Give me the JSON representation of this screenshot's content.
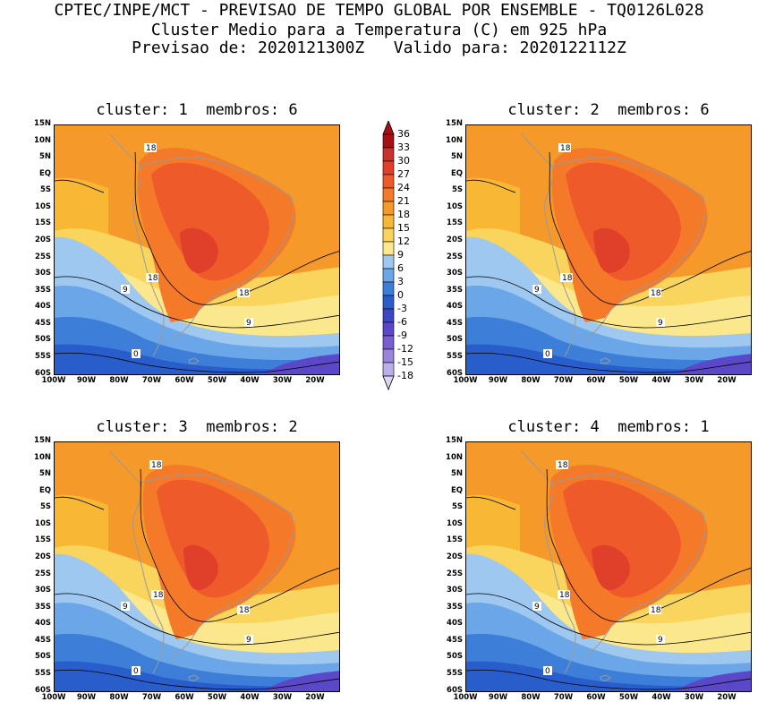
{
  "header": {
    "line1": "CPTEC/INPE/MCT - PREVISAO DE TEMPO GLOBAL POR ENSEMBLE - TQ0126L028",
    "line2": "Cluster Medio para a Temperatura (C) em 925 hPa",
    "line3": "Previsao de: 2020121300Z   Valido para: 2020122112Z"
  },
  "panels": [
    {
      "title": "cluster: 1  membros: 6"
    },
    {
      "title": "cluster: 2  membros: 6"
    },
    {
      "title": "cluster: 3  membros: 2"
    },
    {
      "title": "cluster: 4  membros: 1"
    }
  ],
  "lat_labels": [
    "15N",
    "10N",
    "5N",
    "EQ",
    "5S",
    "10S",
    "15S",
    "20S",
    "25S",
    "30S",
    "35S",
    "40S",
    "45S",
    "50S",
    "55S",
    "60S"
  ],
  "lon_labels": [
    "100W",
    "90W",
    "80W",
    "70W",
    "60W",
    "50W",
    "40W",
    "30W",
    "20W"
  ],
  "colorbar": {
    "levels": [
      "36",
      "33",
      "30",
      "27",
      "24",
      "21",
      "18",
      "15",
      "12",
      "9",
      "6",
      "3",
      "0",
      "-3",
      "-6",
      "-9",
      "-12",
      "-15",
      "-18"
    ],
    "colors": [
      "#a50f15",
      "#c8322c",
      "#e0402a",
      "#ef5a2a",
      "#f47a2a",
      "#f59a2a",
      "#f8b833",
      "#fad55d",
      "#fbe88d",
      "#9fc8f0",
      "#6aa6e8",
      "#3d7ed8",
      "#2a5dcc",
      "#3b48c4",
      "#5a48c8",
      "#7a5ed0",
      "#9a84dc",
      "#bcaee8",
      "#dcd4f4"
    ]
  },
  "map": {
    "contour_labels": [
      "18",
      "18",
      "18",
      "9",
      "0",
      "0",
      "9"
    ],
    "colors": {
      "warm_bg": "#f59a2a",
      "warm_light": "#f8b833",
      "hot": "#f47a2a",
      "hottest": "#ef5a2a",
      "core": "#e0402a",
      "cool1": "#fad55d",
      "cool2": "#fbe88d",
      "blue1": "#9fc8f0",
      "blue2": "#6aa6e8",
      "blue3": "#3d7ed8",
      "blue4": "#2a5dcc",
      "violet": "#5a48c8"
    }
  },
  "chart_data": {
    "type": "heatmap",
    "title": "Cluster Medio para a Temperatura (C) em 925 hPa",
    "variable": "Temperatura (C) em 925 hPa",
    "lon_range": [
      "100W",
      "15W"
    ],
    "lat_range": [
      "60S",
      "15N"
    ],
    "contour_levels": [
      -18,
      -15,
      -12,
      -9,
      -6,
      -3,
      0,
      3,
      6,
      9,
      12,
      15,
      18,
      21,
      24,
      27,
      30,
      33,
      36
    ],
    "clusters": [
      {
        "cluster": 1,
        "membros": 6
      },
      {
        "cluster": 2,
        "membros": 6
      },
      {
        "cluster": 3,
        "membros": 2
      },
      {
        "cluster": 4,
        "membros": 1
      }
    ]
  }
}
